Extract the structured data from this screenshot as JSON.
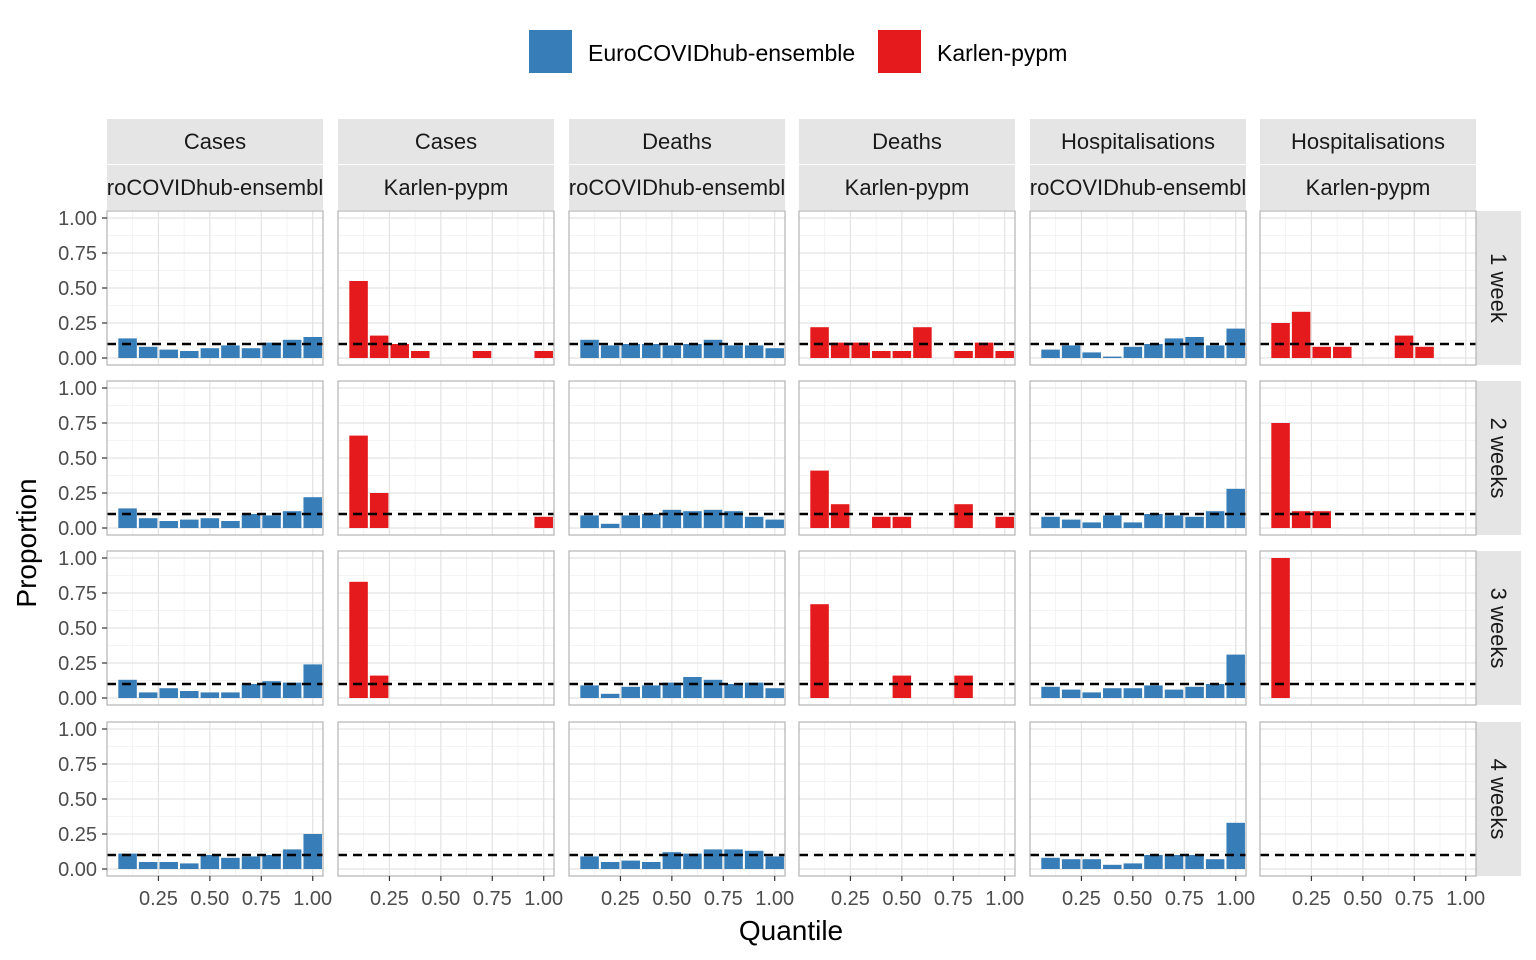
{
  "chart_data": {
    "type": "bar",
    "xlabel": "Quantile",
    "ylabel": "Proportion",
    "xlim": [
      0,
      1.05
    ],
    "ylim": [
      0,
      1
    ],
    "x_ticks": [
      "0.25",
      "0.50",
      "0.75",
      "1.00"
    ],
    "y_ticks": [
      "0.00",
      "0.25",
      "0.50",
      "0.75",
      "1.00"
    ],
    "x_tick_values": [
      0.25,
      0.5,
      0.75,
      1.0
    ],
    "y_tick_values": [
      0,
      0.25,
      0.5,
      0.75,
      1.0
    ],
    "reference_line": 0.1,
    "bin_centers": [
      0.1,
      0.2,
      0.3,
      0.4,
      0.5,
      0.6,
      0.7,
      0.8,
      0.9,
      1.0
    ],
    "legend": [
      {
        "label": "EuroCOVIDhub-ensemble",
        "color": "#377EB8"
      },
      {
        "label": "Karlen-pypm",
        "color": "#E41A1C"
      }
    ],
    "legend_position": "top",
    "grid": true,
    "columns": [
      {
        "target": "Cases",
        "model": "EuroCOVIDhub-ensemble",
        "model_display": "roCOVIDhub-ensembl",
        "color": "#377EB8"
      },
      {
        "target": "Cases",
        "model": "Karlen-pypm",
        "model_display": "Karlen-pypm",
        "color": "#E41A1C"
      },
      {
        "target": "Deaths",
        "model": "EuroCOVIDhub-ensemble",
        "model_display": "roCOVIDhub-ensembl",
        "color": "#377EB8"
      },
      {
        "target": "Deaths",
        "model": "Karlen-pypm",
        "model_display": "Karlen-pypm",
        "color": "#E41A1C"
      },
      {
        "target": "Hospitalisations",
        "model": "EuroCOVIDhub-ensemble",
        "model_display": "roCOVIDhub-ensembl",
        "color": "#377EB8"
      },
      {
        "target": "Hospitalisations",
        "model": "Karlen-pypm",
        "model_display": "Karlen-pypm",
        "color": "#E41A1C"
      }
    ],
    "rows": [
      "1 week",
      "2 weeks",
      "3 weeks",
      "4 weeks"
    ],
    "panels": [
      [
        [
          0.14,
          0.08,
          0.06,
          0.05,
          0.07,
          0.09,
          0.07,
          0.11,
          0.13,
          0.15
        ],
        [
          0.55,
          0.16,
          0.1,
          0.05,
          0,
          0,
          0.05,
          0,
          0,
          0.05
        ],
        [
          0.13,
          0.09,
          0.1,
          0.1,
          0.09,
          0.1,
          0.13,
          0.09,
          0.09,
          0.07
        ],
        [
          0.22,
          0.11,
          0.11,
          0.05,
          0.05,
          0.22,
          0,
          0.05,
          0.11,
          0.05
        ],
        [
          0.06,
          0.09,
          0.04,
          0.01,
          0.08,
          0.1,
          0.14,
          0.15,
          0.09,
          0.21
        ],
        [
          0.25,
          0.33,
          0.08,
          0.08,
          0,
          0,
          0.16,
          0.08,
          0,
          0
        ]
      ],
      [
        [
          0.14,
          0.07,
          0.05,
          0.06,
          0.07,
          0.05,
          0.1,
          0.09,
          0.12,
          0.22
        ],
        [
          0.66,
          0.25,
          0,
          0,
          0,
          0,
          0,
          0,
          0,
          0.08
        ],
        [
          0.09,
          0.03,
          0.09,
          0.1,
          0.13,
          0.12,
          0.13,
          0.12,
          0.08,
          0.06
        ],
        [
          0.41,
          0.17,
          0,
          0.08,
          0.08,
          0,
          0,
          0.17,
          0,
          0.08
        ],
        [
          0.08,
          0.06,
          0.04,
          0.09,
          0.04,
          0.1,
          0.09,
          0.08,
          0.12,
          0.28
        ],
        [
          0.75,
          0.12,
          0.12,
          0,
          0,
          0,
          0,
          0,
          0,
          0
        ]
      ],
      [
        [
          0.13,
          0.04,
          0.07,
          0.05,
          0.04,
          0.04,
          0.1,
          0.12,
          0.11,
          0.24
        ],
        [
          0.83,
          0.16,
          0,
          0,
          0,
          0,
          0,
          0,
          0,
          0
        ],
        [
          0.09,
          0.03,
          0.08,
          0.09,
          0.11,
          0.15,
          0.13,
          0.1,
          0.11,
          0.07
        ],
        [
          0.67,
          0,
          0,
          0,
          0.16,
          0,
          0,
          0.16,
          0,
          0
        ],
        [
          0.08,
          0.06,
          0.04,
          0.07,
          0.07,
          0.09,
          0.06,
          0.08,
          0.1,
          0.31
        ],
        [
          1.0,
          0,
          0,
          0,
          0,
          0,
          0,
          0,
          0,
          0
        ]
      ],
      [
        [
          0.11,
          0.05,
          0.05,
          0.04,
          0.1,
          0.08,
          0.09,
          0.1,
          0.14,
          0.25
        ],
        [
          0,
          0,
          0,
          0,
          0,
          0,
          0,
          0,
          0,
          0
        ],
        [
          0.09,
          0.05,
          0.06,
          0.05,
          0.12,
          0.11,
          0.14,
          0.14,
          0.13,
          0.09
        ],
        [
          0,
          0,
          0,
          0,
          0,
          0,
          0,
          0,
          0,
          0
        ],
        [
          0.08,
          0.07,
          0.07,
          0.03,
          0.04,
          0.1,
          0.1,
          0.1,
          0.07,
          0.33
        ],
        [
          0,
          0,
          0,
          0,
          0,
          0,
          0,
          0,
          0,
          0
        ]
      ]
    ]
  }
}
